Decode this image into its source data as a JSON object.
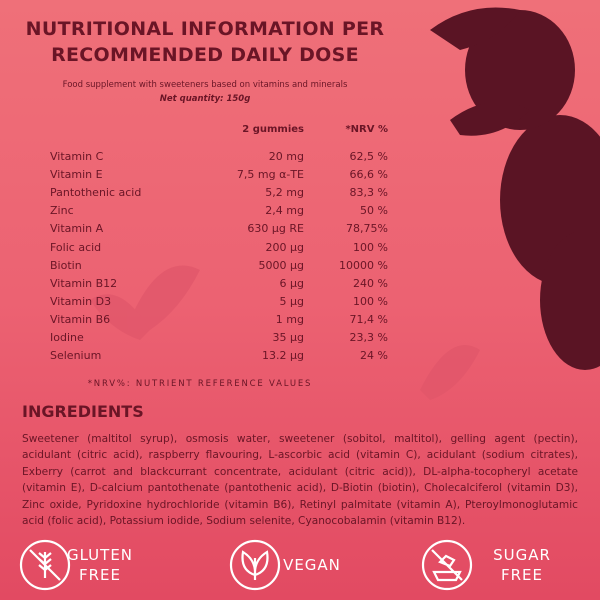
{
  "header": {
    "title_lines": [
      "NUTRITIONAL INFORMATION PER",
      "RECOMMENDED DAILY DOSE"
    ],
    "subtitle": "Food supplement with sweeteners based on vitamins and minerals",
    "net_quantity": "Net quantity: 150g"
  },
  "table": {
    "columns": {
      "dose": "2 gummies",
      "nrv": "*NRV %"
    },
    "rows": [
      [
        "Vitamin C",
        "20 mg",
        "62,5 %"
      ],
      [
        "Vitamin E",
        "7,5 mg α-TE",
        "66,6 %"
      ],
      [
        "Pantothenic acid",
        "5,2 mg",
        "83,3 %"
      ],
      [
        "Zinc",
        "2,4 mg",
        "50 %"
      ],
      [
        "Vitamin A",
        "630 µg RE",
        "78,75%"
      ],
      [
        "Folic acid",
        "200 µg",
        "100 %"
      ],
      [
        "Biotin",
        "5000 µg",
        "10000 %"
      ],
      [
        "Vitamin B12",
        "6 µg",
        "240 %"
      ],
      [
        "Vitamin D3",
        "5 µg",
        "100 %"
      ],
      [
        "Vitamin B6",
        "1 mg",
        "71,4 %"
      ],
      [
        "Iodine",
        "35 µg",
        "23,3 %"
      ],
      [
        "Selenium",
        "13.2 µg",
        "24 %"
      ]
    ],
    "footnote": "*NRV%: NUTRIENT REFERENCE VALUES"
  },
  "ingredients": {
    "heading": "INGREDIENTS",
    "text": "Sweetener (maltitol syrup), osmosis water, sweetener (sobitol, maltitol), gelling agent (pectin), acidulant (citric acid), raspberry flavouring, L-ascorbic acid (vitamin C), acidulant (sodium citrates), Exberry (carrot and blackcurrant concentrate, acidulant (citric acid)), DL-alpha-tocopheryl acetate (vitamin E), D-calcium pantothenate (pantothenic acid), D-Biotin (biotin), Cholecalciferol (vitamin D3), Zinc oxide, Pyridoxine hydrochloride (vitamin B6), Retinyl palmitate (vitamin A), Pteroylmonoglutamic acid (folic acid), Potassium iodide, Sodium selenite, Cyanocobalamin (vitamin B12)."
  },
  "badges": [
    {
      "lines": [
        "GLUTEN",
        "FREE"
      ]
    },
    {
      "lines": [
        "VEGAN"
      ]
    },
    {
      "lines": [
        "SUGAR",
        "FREE"
      ]
    }
  ]
}
